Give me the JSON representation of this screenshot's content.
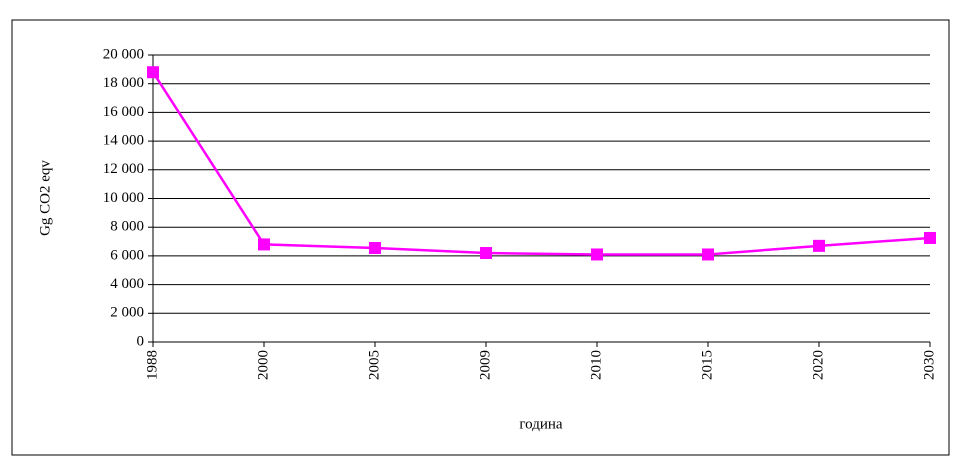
{
  "chart_data": {
    "type": "line",
    "x_label": "година",
    "y_label": "Gg CO2 eqv",
    "categories": [
      "1988",
      "2000",
      "2005",
      "2009",
      "2010",
      "2015",
      "2020",
      "2030"
    ],
    "series": [
      {
        "name": "Gg CO2 eqv",
        "color": "#ff00ff",
        "values": [
          18800,
          6800,
          6550,
          6200,
          6100,
          6100,
          6700,
          7250
        ]
      }
    ],
    "ylim": [
      0,
      20000
    ],
    "yticks": [
      0,
      {
        "value": 2000,
        "label": "2 000"
      },
      {
        "value": 4000,
        "label": "4 000"
      },
      {
        "value": 6000,
        "label": "6 000"
      },
      {
        "value": 8000,
        "label": "8 000"
      },
      {
        "value": 10000,
        "label": "10 000"
      },
      {
        "value": 12000,
        "label": "12 000"
      },
      {
        "value": 14000,
        "label": "14 000"
      },
      {
        "value": 16000,
        "label": "16 000"
      },
      {
        "value": 18000,
        "label": "18 000"
      },
      {
        "value": 20000,
        "label": "20 000"
      }
    ],
    "grid": true
  }
}
